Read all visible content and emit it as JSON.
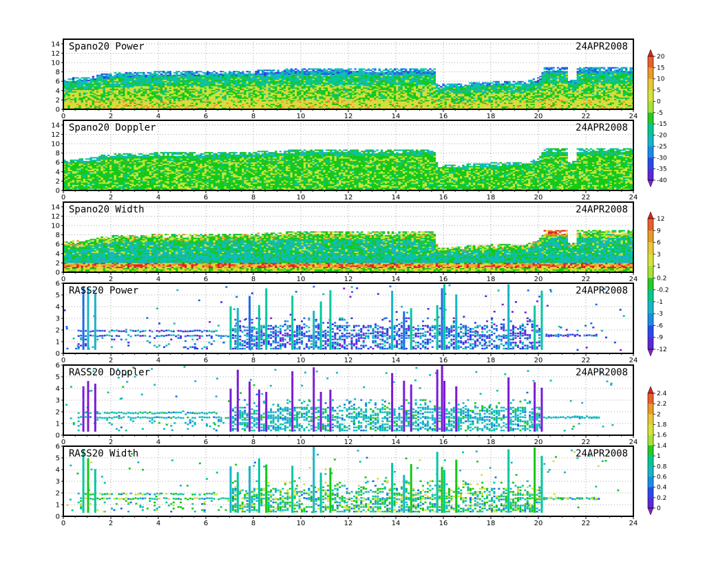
{
  "chart_data": [
    {
      "type": "heatmap",
      "title": "Spano20 Power",
      "date": "24APR2008",
      "xlim": [
        0,
        24
      ],
      "ylim": [
        0,
        15
      ],
      "xticks": [
        0,
        2,
        4,
        6,
        8,
        10,
        12,
        14,
        16,
        18,
        20,
        22,
        24
      ],
      "yticks": [
        0,
        2,
        4,
        6,
        8,
        10,
        12,
        14
      ],
      "grid": true,
      "echo_top": [
        [
          0,
          6.5
        ],
        [
          1,
          6.8
        ],
        [
          1.6,
          7.5
        ],
        [
          2,
          7.7
        ],
        [
          4,
          8.0
        ],
        [
          6,
          8.0
        ],
        [
          8,
          8.2
        ],
        [
          9.4,
          8.5
        ],
        [
          10,
          8.6
        ],
        [
          12,
          8.6
        ],
        [
          13,
          8.5
        ],
        [
          15.6,
          8.6
        ],
        [
          15.7,
          5.2
        ],
        [
          18,
          5.8
        ],
        [
          19.5,
          6.0
        ],
        [
          20,
          6.8
        ],
        [
          20.2,
          8.8
        ],
        [
          21.2,
          8.8
        ],
        [
          21.2,
          6.3
        ],
        [
          21.6,
          6.3
        ],
        [
          21.6,
          8.8
        ],
        [
          24,
          8.8
        ]
      ],
      "colorbar": {
        "labels": [
          "20",
          "15",
          "10",
          "5",
          "0",
          "-5",
          "-15",
          "-20",
          "-25",
          "-30",
          "-35",
          "-40"
        ],
        "colors": [
          "#e0202a",
          "#e8602a",
          "#e89a2a",
          "#e8c83a",
          "#d8e23a",
          "#a6e23a",
          "#28c828",
          "#00c890",
          "#18b4c8",
          "#1a8ce8",
          "#2a4ae8",
          "#5a2ad8",
          "#8a20c8"
        ]
      }
    },
    {
      "type": "heatmap",
      "title": "Spano20 Doppler",
      "date": "24APR2008",
      "xlim": [
        0,
        24
      ],
      "ylim": [
        0,
        15
      ],
      "xticks": [
        0,
        2,
        4,
        6,
        8,
        10,
        12,
        14,
        16,
        18,
        20,
        22,
        24
      ],
      "yticks": [
        0,
        2,
        4,
        6,
        8,
        10,
        12,
        14
      ],
      "grid": true,
      "echo_top": [
        [
          0,
          6.5
        ],
        [
          1,
          6.8
        ],
        [
          1.6,
          7.5
        ],
        [
          2,
          7.7
        ],
        [
          4,
          8.0
        ],
        [
          6,
          8.0
        ],
        [
          8,
          8.2
        ],
        [
          9.4,
          8.5
        ],
        [
          10,
          8.6
        ],
        [
          12,
          8.6
        ],
        [
          13,
          8.5
        ],
        [
          15.6,
          8.6
        ],
        [
          15.7,
          5.2
        ],
        [
          18,
          5.8
        ],
        [
          19.5,
          6.0
        ],
        [
          20,
          6.8
        ],
        [
          20.2,
          8.8
        ],
        [
          21.2,
          8.8
        ],
        [
          21.2,
          6.3
        ],
        [
          21.6,
          6.3
        ],
        [
          21.6,
          8.8
        ],
        [
          24,
          8.8
        ]
      ]
    },
    {
      "type": "heatmap",
      "title": "Spano20 Width",
      "date": "24APR2008",
      "xlim": [
        0,
        24
      ],
      "ylim": [
        0,
        15
      ],
      "xticks": [
        0,
        2,
        4,
        6,
        8,
        10,
        12,
        14,
        16,
        18,
        20,
        22,
        24
      ],
      "yticks": [
        0,
        2,
        4,
        6,
        8,
        10,
        12,
        14
      ],
      "grid": true,
      "echo_top": [
        [
          0,
          6.5
        ],
        [
          1,
          6.8
        ],
        [
          1.6,
          7.5
        ],
        [
          2,
          7.7
        ],
        [
          4,
          8.0
        ],
        [
          6,
          8.0
        ],
        [
          8,
          8.2
        ],
        [
          9.4,
          8.5
        ],
        [
          10,
          8.6
        ],
        [
          12,
          8.6
        ],
        [
          13,
          8.5
        ],
        [
          15.6,
          8.6
        ],
        [
          15.7,
          5.2
        ],
        [
          18,
          5.8
        ],
        [
          19.5,
          6.0
        ],
        [
          20,
          6.8
        ],
        [
          20.2,
          8.8
        ],
        [
          21.2,
          8.8
        ],
        [
          21.2,
          6.3
        ],
        [
          21.6,
          6.3
        ],
        [
          21.6,
          8.8
        ],
        [
          24,
          8.8
        ]
      ],
      "colorbar": {
        "labels": [
          "12",
          "9",
          "6",
          "3",
          "1",
          "0.2",
          "-0.2",
          "-1",
          "-3",
          "-6",
          "-9",
          "-12"
        ],
        "colors": [
          "#e0202a",
          "#e8602a",
          "#e89a2a",
          "#e8c83a",
          "#d8e23a",
          "#a6e23a",
          "#28c828",
          "#00c890",
          "#18b4c8",
          "#1a8ce8",
          "#2a4ae8",
          "#5a2ad8",
          "#8a20c8"
        ]
      }
    },
    {
      "type": "heatmap",
      "title": "RASS20 Power",
      "date": "24APR2008",
      "xlim": [
        0,
        24
      ],
      "ylim": [
        0,
        6
      ],
      "xticks": [
        0,
        2,
        4,
        6,
        8,
        10,
        12,
        14,
        16,
        18,
        20,
        22,
        24
      ],
      "yticks": [
        0,
        1,
        2,
        3,
        4,
        5,
        6
      ],
      "grid": true,
      "column_times": [
        0.8,
        1.0,
        1.3,
        7.0,
        7.3,
        7.8,
        8.2,
        8.5,
        9.6,
        10.5,
        10.8,
        11.2,
        13.8,
        14.3,
        14.6,
        15.7,
        15.9,
        16.0,
        16.5,
        18.7,
        19.8,
        20.1
      ]
    },
    {
      "type": "heatmap",
      "title": "RASS20 Doppler",
      "date": "24APR2008",
      "xlim": [
        0,
        24
      ],
      "ylim": [
        0,
        6
      ],
      "xticks": [
        0,
        2,
        4,
        6,
        8,
        10,
        12,
        14,
        16,
        18,
        20,
        22,
        24
      ],
      "yticks": [
        0,
        1,
        2,
        3,
        4,
        5,
        6
      ],
      "grid": true,
      "column_times": [
        0.8,
        1.0,
        1.3,
        7.0,
        7.3,
        7.8,
        8.2,
        8.5,
        9.6,
        10.5,
        10.8,
        11.2,
        13.8,
        14.3,
        14.6,
        15.7,
        15.9,
        16.0,
        16.5,
        18.7,
        19.8,
        20.1
      ],
      "colorbar": {
        "labels": [
          "2.4",
          "2.2",
          "2",
          "1.8",
          "1.6",
          "1.4",
          "1",
          "0.8",
          "0.6",
          "0.4",
          "0.2",
          "0"
        ],
        "colors": [
          "#e0202a",
          "#e8602a",
          "#e89a2a",
          "#e8c83a",
          "#d8e23a",
          "#a6e23a",
          "#28c828",
          "#00c890",
          "#18b4c8",
          "#1a8ce8",
          "#2a4ae8",
          "#5a2ad8",
          "#8a20c8"
        ]
      }
    },
    {
      "type": "heatmap",
      "title": "RASS20 Width",
      "date": "24APR2008",
      "xlim": [
        0,
        24
      ],
      "ylim": [
        0,
        6
      ],
      "xticks": [
        0,
        2,
        4,
        6,
        8,
        10,
        12,
        14,
        16,
        18,
        20,
        22,
        24
      ],
      "yticks": [
        0,
        1,
        2,
        3,
        4,
        5,
        6
      ],
      "grid": true,
      "column_times": [
        0.8,
        1.0,
        1.3,
        7.0,
        7.3,
        7.8,
        8.2,
        8.5,
        9.6,
        10.5,
        10.8,
        11.2,
        13.8,
        14.3,
        14.6,
        15.7,
        15.9,
        16.0,
        16.5,
        18.7,
        19.8,
        20.1
      ]
    }
  ]
}
